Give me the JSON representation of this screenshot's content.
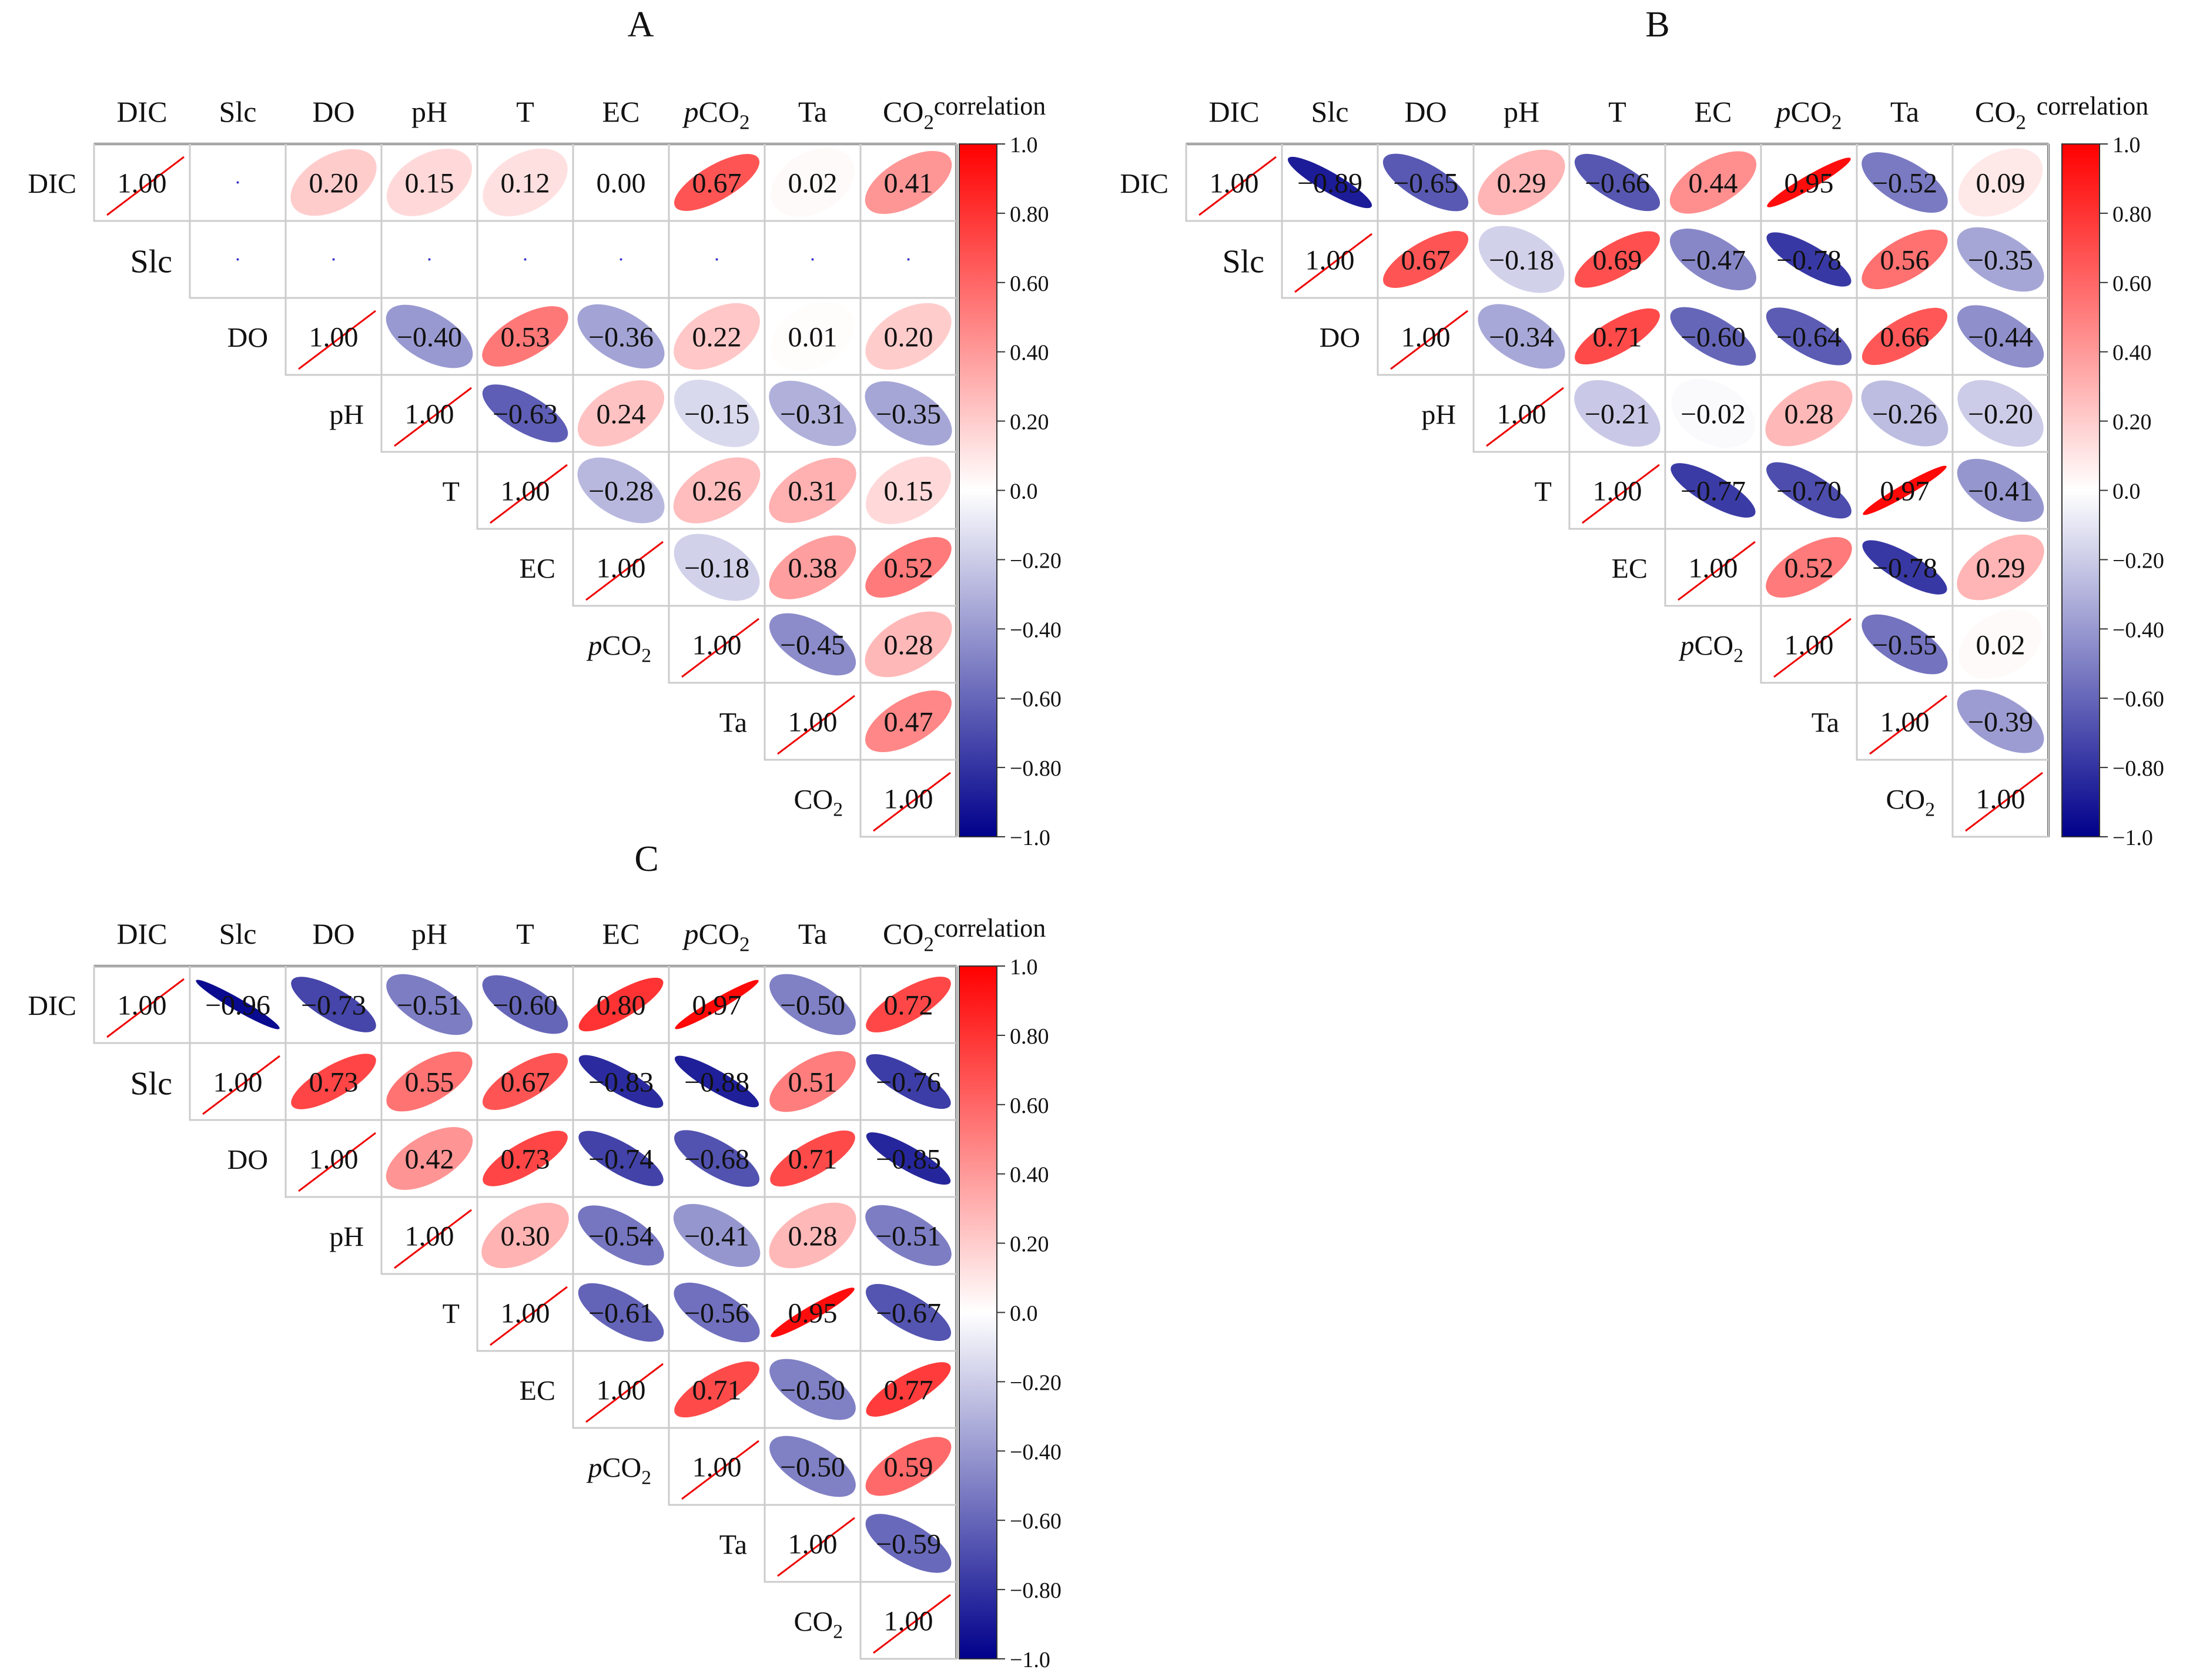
{
  "chart_data": [
    {
      "type": "heatmap",
      "panel_label": "A",
      "title": "A",
      "legend_title": "correlation",
      "color_scale": {
        "min": -1.0,
        "mid": 0.0,
        "max": 1.0,
        "low_color": "#00008B",
        "mid_color": "#FFFFFF",
        "high_color": "#FF0000"
      },
      "colorbar_ticks": [
        "1.0",
        "0.80",
        "0.60",
        "0.40",
        "0.20",
        "0.0",
        "−0.20",
        "−0.40",
        "−0.60",
        "−0.80",
        "−1.0"
      ],
      "variables": [
        "DIC",
        "Slc",
        "DO",
        "pH",
        "T",
        "EC",
        "pCO2",
        "Ta",
        "CO2"
      ],
      "row_labels": [
        "DIC",
        "Slc",
        "DO",
        "pH",
        "T",
        "EC",
        "pCO2",
        "Ta",
        "CO2"
      ],
      "matrix": [
        [
          1.0,
          null,
          0.2,
          0.15,
          0.12,
          0.0,
          0.67,
          0.02,
          0.41
        ],
        [
          null,
          null,
          null,
          null,
          null,
          null,
          null,
          null,
          null
        ],
        [
          null,
          null,
          1.0,
          -0.4,
          0.53,
          -0.36,
          0.22,
          0.01,
          0.2
        ],
        [
          null,
          null,
          null,
          1.0,
          -0.63,
          0.24,
          -0.15,
          -0.31,
          -0.35
        ],
        [
          null,
          null,
          null,
          null,
          1.0,
          -0.28,
          0.26,
          0.31,
          0.15
        ],
        [
          null,
          null,
          null,
          null,
          null,
          1.0,
          -0.18,
          0.38,
          0.52
        ],
        [
          null,
          null,
          null,
          null,
          null,
          null,
          1.0,
          -0.45,
          0.28
        ],
        [
          null,
          null,
          null,
          null,
          null,
          null,
          null,
          1.0,
          0.47
        ],
        [
          null,
          null,
          null,
          null,
          null,
          null,
          null,
          null,
          1.0
        ]
      ]
    },
    {
      "type": "heatmap",
      "panel_label": "B",
      "title": "B",
      "legend_title": "correlation",
      "color_scale": {
        "min": -1.0,
        "mid": 0.0,
        "max": 1.0,
        "low_color": "#00008B",
        "mid_color": "#FFFFFF",
        "high_color": "#FF0000"
      },
      "colorbar_ticks": [
        "1.0",
        "0.80",
        "0.60",
        "0.40",
        "0.20",
        "0.0",
        "−0.20",
        "−0.40",
        "−0.60",
        "−0.80",
        "−1.0"
      ],
      "variables": [
        "DIC",
        "Slc",
        "DO",
        "pH",
        "T",
        "EC",
        "pCO2",
        "Ta",
        "CO2"
      ],
      "row_labels": [
        "DIC",
        "Slc",
        "DO",
        "pH",
        "T",
        "EC",
        "pCO2",
        "Ta",
        "CO2"
      ],
      "matrix": [
        [
          1.0,
          -0.89,
          -0.65,
          0.29,
          -0.66,
          0.44,
          0.95,
          -0.52,
          0.09
        ],
        [
          null,
          1.0,
          0.67,
          -0.18,
          0.69,
          -0.47,
          -0.78,
          0.56,
          -0.35
        ],
        [
          null,
          null,
          1.0,
          -0.34,
          0.71,
          -0.6,
          -0.64,
          0.66,
          -0.44
        ],
        [
          null,
          null,
          null,
          1.0,
          -0.21,
          -0.02,
          0.28,
          -0.26,
          -0.2
        ],
        [
          null,
          null,
          null,
          null,
          1.0,
          -0.77,
          -0.7,
          0.97,
          -0.41
        ],
        [
          null,
          null,
          null,
          null,
          null,
          1.0,
          0.52,
          -0.78,
          0.29
        ],
        [
          null,
          null,
          null,
          null,
          null,
          null,
          1.0,
          -0.55,
          0.02
        ],
        [
          null,
          null,
          null,
          null,
          null,
          null,
          null,
          1.0,
          -0.39
        ],
        [
          null,
          null,
          null,
          null,
          null,
          null,
          null,
          null,
          1.0
        ]
      ]
    },
    {
      "type": "heatmap",
      "panel_label": "C",
      "title": "C",
      "legend_title": "correlation",
      "color_scale": {
        "min": -1.0,
        "mid": 0.0,
        "max": 1.0,
        "low_color": "#00008B",
        "mid_color": "#FFFFFF",
        "high_color": "#FF0000"
      },
      "colorbar_ticks": [
        "1.0",
        "0.80",
        "0.60",
        "0.40",
        "0.20",
        "0.0",
        "−0.20",
        "−0.40",
        "−0.60",
        "−0.80",
        "−1.0"
      ],
      "variables": [
        "DIC",
        "Slc",
        "DO",
        "pH",
        "T",
        "EC",
        "pCO2",
        "Ta",
        "CO2"
      ],
      "row_labels": [
        "DIC",
        "Slc",
        "DO",
        "pH",
        "T",
        "EC",
        "pCO2",
        "Ta",
        "CO2"
      ],
      "matrix": [
        [
          1.0,
          -0.96,
          -0.73,
          -0.51,
          -0.6,
          0.8,
          0.97,
          -0.5,
          0.72
        ],
        [
          null,
          1.0,
          0.73,
          0.55,
          0.67,
          -0.83,
          -0.88,
          0.51,
          -0.76
        ],
        [
          null,
          null,
          1.0,
          0.42,
          0.73,
          -0.74,
          -0.68,
          0.71,
          -0.85
        ],
        [
          null,
          null,
          null,
          1.0,
          0.3,
          -0.54,
          -0.41,
          0.28,
          -0.51
        ],
        [
          null,
          null,
          null,
          null,
          1.0,
          -0.61,
          -0.56,
          0.95,
          -0.67
        ],
        [
          null,
          null,
          null,
          null,
          null,
          1.0,
          0.71,
          -0.5,
          0.77
        ],
        [
          null,
          null,
          null,
          null,
          null,
          null,
          1.0,
          -0.5,
          0.59
        ],
        [
          null,
          null,
          null,
          null,
          null,
          null,
          null,
          1.0,
          -0.59
        ],
        [
          null,
          null,
          null,
          null,
          null,
          null,
          null,
          null,
          1.0
        ]
      ]
    }
  ]
}
